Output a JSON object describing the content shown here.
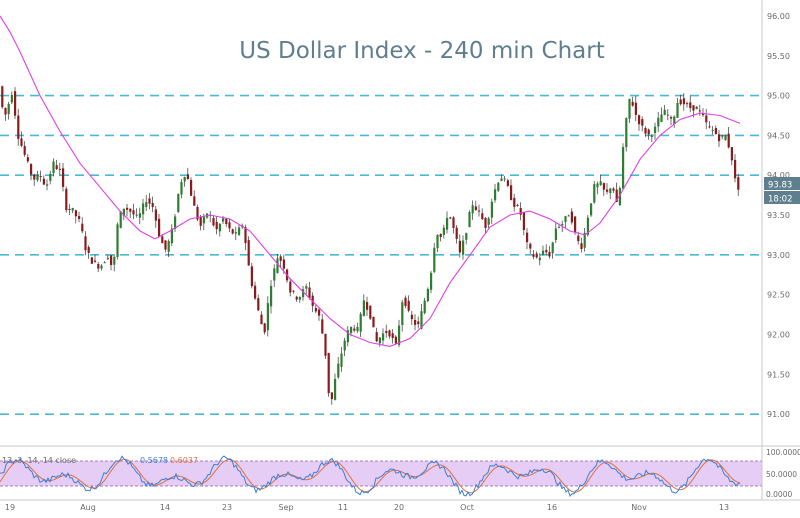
{
  "chart_data": {
    "type": "candlestick",
    "title": "US Dollar Index - 240 min Chart",
    "y_ticks": [
      "96.00",
      "95.50",
      "95.00",
      "94.50",
      "94.00",
      "93.50",
      "93.00",
      "92.50",
      "92.00",
      "91.50",
      "91.00"
    ],
    "ylim": [
      90.6,
      96.2
    ],
    "x_ticks": [
      "19",
      "Aug",
      "14",
      "23",
      "Sep",
      "11",
      "20",
      "Oct",
      "16",
      "Nov",
      "13"
    ],
    "price_label": "93.83",
    "time_label": "18:02",
    "horizontal_levels": [
      95.0,
      94.5,
      94.0,
      93.0,
      91.0
    ],
    "price_path": [
      [
        0,
        95.2
      ],
      [
        6,
        94.7
      ],
      [
        14,
        95.05
      ],
      [
        20,
        94.5
      ],
      [
        28,
        94.2
      ],
      [
        35,
        93.95
      ],
      [
        42,
        94.0
      ],
      [
        48,
        93.85
      ],
      [
        55,
        94.15
      ],
      [
        62,
        94.05
      ],
      [
        68,
        93.6
      ],
      [
        75,
        93.55
      ],
      [
        82,
        93.4
      ],
      [
        88,
        93.05
      ],
      [
        95,
        92.9
      ],
      [
        102,
        92.85
      ],
      [
        110,
        93.0
      ],
      [
        115,
        92.8
      ],
      [
        120,
        93.45
      ],
      [
        126,
        93.6
      ],
      [
        132,
        93.55
      ],
      [
        140,
        93.45
      ],
      [
        148,
        93.7
      ],
      [
        155,
        93.6
      ],
      [
        162,
        93.2
      ],
      [
        168,
        93.05
      ],
      [
        175,
        93.35
      ],
      [
        182,
        93.9
      ],
      [
        188,
        94.05
      ],
      [
        195,
        93.65
      ],
      [
        202,
        93.35
      ],
      [
        210,
        93.55
      ],
      [
        218,
        93.3
      ],
      [
        225,
        93.45
      ],
      [
        232,
        93.3
      ],
      [
        238,
        93.25
      ],
      [
        245,
        93.4
      ],
      [
        250,
        92.9
      ],
      [
        255,
        92.55
      ],
      [
        260,
        92.3
      ],
      [
        266,
        92.0
      ],
      [
        272,
        92.6
      ],
      [
        280,
        93.0
      ],
      [
        286,
        92.85
      ],
      [
        292,
        92.55
      ],
      [
        300,
        92.45
      ],
      [
        308,
        92.6
      ],
      [
        315,
        92.35
      ],
      [
        322,
        92.2
      ],
      [
        328,
        91.7
      ],
      [
        332,
        91.05
      ],
      [
        338,
        91.5
      ],
      [
        342,
        91.7
      ],
      [
        348,
        92.0
      ],
      [
        354,
        92.1
      ],
      [
        360,
        92.05
      ],
      [
        366,
        92.45
      ],
      [
        372,
        92.25
      ],
      [
        378,
        91.9
      ],
      [
        384,
        92.0
      ],
      [
        390,
        92.05
      ],
      [
        398,
        91.85
      ],
      [
        405,
        92.5
      ],
      [
        412,
        92.2
      ],
      [
        420,
        92.1
      ],
      [
        426,
        92.4
      ],
      [
        432,
        92.7
      ],
      [
        438,
        93.3
      ],
      [
        444,
        93.2
      ],
      [
        450,
        93.55
      ],
      [
        456,
        93.3
      ],
      [
        462,
        93.0
      ],
      [
        468,
        93.3
      ],
      [
        474,
        93.65
      ],
      [
        480,
        93.55
      ],
      [
        488,
        93.35
      ],
      [
        495,
        93.75
      ],
      [
        502,
        94.0
      ],
      [
        508,
        93.9
      ],
      [
        515,
        93.65
      ],
      [
        522,
        93.55
      ],
      [
        528,
        93.15
      ],
      [
        534,
        93.0
      ],
      [
        540,
        92.95
      ],
      [
        546,
        93.05
      ],
      [
        552,
        93.0
      ],
      [
        558,
        93.35
      ],
      [
        565,
        93.4
      ],
      [
        572,
        93.55
      ],
      [
        578,
        93.2
      ],
      [
        584,
        93.1
      ],
      [
        590,
        93.5
      ],
      [
        596,
        93.85
      ],
      [
        602,
        93.9
      ],
      [
        608,
        93.75
      ],
      [
        614,
        93.9
      ],
      [
        620,
        93.55
      ],
      [
        626,
        94.5
      ],
      [
        632,
        95.0
      ],
      [
        638,
        94.75
      ],
      [
        644,
        94.6
      ],
      [
        650,
        94.5
      ],
      [
        656,
        94.55
      ],
      [
        662,
        94.75
      ],
      [
        668,
        94.8
      ],
      [
        674,
        94.65
      ],
      [
        680,
        94.95
      ],
      [
        686,
        94.9
      ],
      [
        692,
        94.85
      ],
      [
        698,
        94.85
      ],
      [
        704,
        94.75
      ],
      [
        710,
        94.6
      ],
      [
        716,
        94.55
      ],
      [
        722,
        94.45
      ],
      [
        728,
        94.5
      ],
      [
        734,
        94.2
      ],
      [
        738,
        93.85
      ]
    ],
    "ma_path": [
      [
        0,
        96.0
      ],
      [
        10,
        95.8
      ],
      [
        20,
        95.55
      ],
      [
        40,
        95.0
      ],
      [
        60,
        94.55
      ],
      [
        80,
        94.15
      ],
      [
        100,
        93.85
      ],
      [
        120,
        93.55
      ],
      [
        140,
        93.3
      ],
      [
        155,
        93.2
      ],
      [
        170,
        93.3
      ],
      [
        190,
        93.45
      ],
      [
        210,
        93.5
      ],
      [
        230,
        93.45
      ],
      [
        250,
        93.3
      ],
      [
        270,
        93.0
      ],
      [
        290,
        92.7
      ],
      [
        310,
        92.45
      ],
      [
        330,
        92.2
      ],
      [
        350,
        92.0
      ],
      [
        370,
        91.9
      ],
      [
        390,
        91.85
      ],
      [
        410,
        91.95
      ],
      [
        430,
        92.2
      ],
      [
        450,
        92.65
      ],
      [
        470,
        93.0
      ],
      [
        490,
        93.35
      ],
      [
        510,
        93.5
      ],
      [
        530,
        93.55
      ],
      [
        550,
        93.45
      ],
      [
        570,
        93.3
      ],
      [
        585,
        93.25
      ],
      [
        600,
        93.4
      ],
      [
        620,
        93.75
      ],
      [
        640,
        94.2
      ],
      [
        660,
        94.5
      ],
      [
        680,
        94.7
      ],
      [
        700,
        94.78
      ],
      [
        720,
        94.75
      ],
      [
        740,
        94.65
      ]
    ],
    "oscillator": {
      "legend": "13, 3, 14, 14 close",
      "values": [
        "0.5678",
        "0.6037"
      ],
      "scale": [
        "100.0000",
        "50.0000",
        "0.0000"
      ]
    }
  }
}
